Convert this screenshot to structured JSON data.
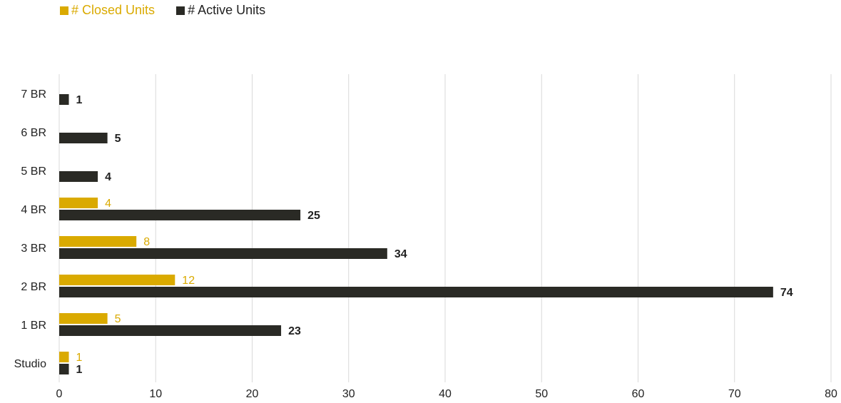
{
  "colors": {
    "closed": "#DAAA00",
    "active": "#2A2A25",
    "grid": "#D9D9D9",
    "text": "#222222"
  },
  "chart_data": {
    "type": "bar",
    "orientation": "horizontal",
    "categories": [
      "Studio",
      "1 BR",
      "2 BR",
      "3 BR",
      "4 BR",
      "5 BR",
      "6 BR",
      "7 BR"
    ],
    "series": [
      {
        "name": "# Closed Units",
        "key": "closed",
        "values": [
          1,
          5,
          12,
          8,
          4,
          null,
          null,
          null
        ]
      },
      {
        "name": "# Active Units",
        "key": "active",
        "values": [
          1,
          23,
          74,
          34,
          25,
          4,
          5,
          1
        ]
      }
    ],
    "xlim": [
      0,
      80
    ],
    "xticks": [
      0,
      10,
      20,
      30,
      40,
      50,
      60,
      70,
      80
    ],
    "grid": "vertical",
    "legend_position": "top-left",
    "data_labels": true
  }
}
